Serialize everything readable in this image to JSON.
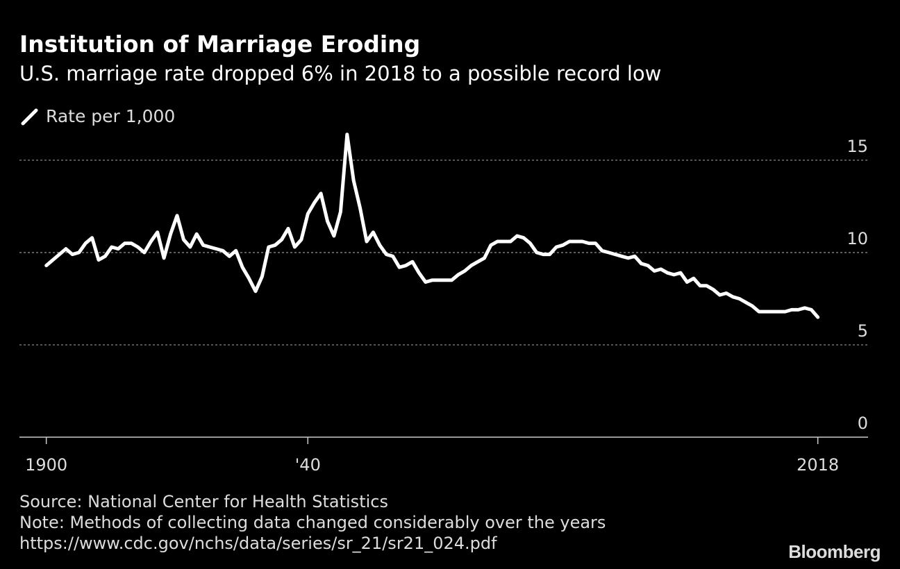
{
  "chart_data": {
    "type": "line",
    "title": "Institution of Marriage Eroding",
    "subtitle": "U.S. marriage rate dropped 6% in 2018 to a possible record low",
    "source": "Source: National Center for Health Statistics",
    "note": "Note: Methods of collecting data changed considerably over the years",
    "url": "https://www.cdc.gov/nchs/data/series/sr_21/sr21_024.pdf",
    "brand": "Bloomberg",
    "x": [
      1900,
      1901,
      1902,
      1903,
      1904,
      1905,
      1906,
      1907,
      1908,
      1909,
      1910,
      1911,
      1912,
      1913,
      1914,
      1915,
      1916,
      1917,
      1918,
      1919,
      1920,
      1921,
      1922,
      1923,
      1924,
      1925,
      1926,
      1927,
      1928,
      1929,
      1930,
      1931,
      1932,
      1933,
      1934,
      1935,
      1936,
      1937,
      1938,
      1939,
      1940,
      1941,
      1942,
      1943,
      1944,
      1945,
      1946,
      1947,
      1948,
      1949,
      1950,
      1951,
      1952,
      1953,
      1954,
      1955,
      1956,
      1957,
      1958,
      1959,
      1960,
      1961,
      1962,
      1963,
      1964,
      1965,
      1966,
      1967,
      1968,
      1969,
      1970,
      1971,
      1972,
      1973,
      1974,
      1975,
      1976,
      1977,
      1978,
      1979,
      1980,
      1981,
      1982,
      1983,
      1984,
      1985,
      1986,
      1987,
      1988,
      1989,
      1990,
      1991,
      1992,
      1993,
      1994,
      1995,
      1996,
      1997,
      1998,
      1999,
      2000,
      2001,
      2002,
      2003,
      2004,
      2005,
      2006,
      2007,
      2008,
      2009,
      2010,
      2011,
      2012,
      2013,
      2014,
      2015,
      2016,
      2017,
      2018
    ],
    "series": [
      {
        "name": "Rate per 1,000",
        "color": "#ffffff",
        "values": [
          9.3,
          9.6,
          9.9,
          10.2,
          9.9,
          10.0,
          10.5,
          10.8,
          9.6,
          9.8,
          10.3,
          10.2,
          10.5,
          10.5,
          10.3,
          10.0,
          10.6,
          11.1,
          9.7,
          11.0,
          12.0,
          10.7,
          10.3,
          11.0,
          10.4,
          10.3,
          10.2,
          10.1,
          9.8,
          10.1,
          9.2,
          8.6,
          7.9,
          8.7,
          10.3,
          10.4,
          10.7,
          11.3,
          10.3,
          10.7,
          12.1,
          12.7,
          13.2,
          11.7,
          10.9,
          12.2,
          16.4,
          13.9,
          12.4,
          10.6,
          11.1,
          10.4,
          9.9,
          9.8,
          9.2,
          9.3,
          9.5,
          8.9,
          8.4,
          8.5,
          8.5,
          8.5,
          8.5,
          8.8,
          9.0,
          9.3,
          9.5,
          9.7,
          10.4,
          10.6,
          10.6,
          10.6,
          10.9,
          10.8,
          10.5,
          10.0,
          9.9,
          9.9,
          10.3,
          10.4,
          10.6,
          10.6,
          10.6,
          10.5,
          10.5,
          10.1,
          10.0,
          9.9,
          9.8,
          9.7,
          9.8,
          9.4,
          9.3,
          9.0,
          9.1,
          8.9,
          8.8,
          8.9,
          8.4,
          8.6,
          8.2,
          8.2,
          8.0,
          7.7,
          7.8,
          7.6,
          7.5,
          7.3,
          7.1,
          6.8,
          6.8,
          6.8,
          6.8,
          6.8,
          6.9,
          6.9,
          7.0,
          6.9,
          6.5
        ]
      }
    ],
    "xlim": [
      1896,
      2026
    ],
    "xticks": [
      1900,
      {
        "value": 1940,
        "label": "'40"
      },
      2018
    ],
    "ylim": [
      0,
      16.5
    ],
    "yticks": [
      0,
      5,
      10,
      15
    ],
    "grid": true
  }
}
